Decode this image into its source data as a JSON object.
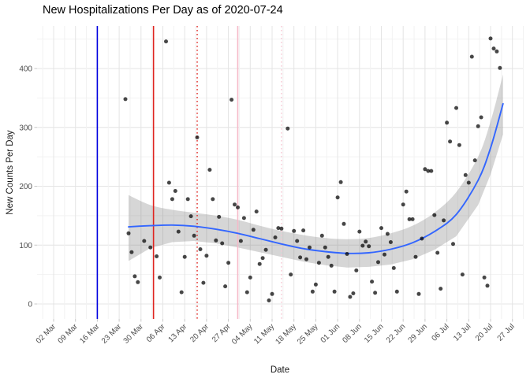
{
  "title": "New Hospitalizations Per Day as of 2020-07-24",
  "chart_data": {
    "type": "scatter",
    "title": "New Hospitalizations Per Day as of 2020-07-24",
    "xlabel": "Date",
    "ylabel": "New Counts Per Day",
    "legend": "none",
    "grid": "major+minor",
    "y_ticks": [
      0,
      100,
      200,
      300,
      400
    ],
    "y_minor_ticks": [
      50,
      150,
      250,
      350,
      450
    ],
    "ylim": [
      -25,
      472
    ],
    "x_ticks": [
      {
        "label": "02 Mar",
        "date": "2020-03-02"
      },
      {
        "label": "09 Mar",
        "date": "2020-03-09"
      },
      {
        "label": "16 Mar",
        "date": "2020-03-16"
      },
      {
        "label": "23 Mar",
        "date": "2020-03-23"
      },
      {
        "label": "30 Mar",
        "date": "2020-03-30"
      },
      {
        "label": "06 Apr",
        "date": "2020-04-06"
      },
      {
        "label": "13 Apr",
        "date": "2020-04-13"
      },
      {
        "label": "20 Apr",
        "date": "2020-04-20"
      },
      {
        "label": "27 Apr",
        "date": "2020-04-27"
      },
      {
        "label": "04 May",
        "date": "2020-05-04"
      },
      {
        "label": "11 May",
        "date": "2020-05-11"
      },
      {
        "label": "18 May",
        "date": "2020-05-18"
      },
      {
        "label": "25 May",
        "date": "2020-05-25"
      },
      {
        "label": "01 Jun",
        "date": "2020-06-01"
      },
      {
        "label": "08 Jun",
        "date": "2020-06-08"
      },
      {
        "label": "15 Jun",
        "date": "2020-06-15"
      },
      {
        "label": "22 Jun",
        "date": "2020-06-22"
      },
      {
        "label": "29 Jun",
        "date": "2020-06-29"
      },
      {
        "label": "06 Jul",
        "date": "2020-07-06"
      },
      {
        "label": "13 Jul",
        "date": "2020-07-13"
      },
      {
        "label": "20 Jul",
        "date": "2020-07-20"
      },
      {
        "label": "27 Jul",
        "date": "2020-07-27"
      }
    ],
    "vlines": [
      {
        "date": "2020-03-16",
        "color": "#0000E0",
        "style": "solid",
        "name": "blue-reference-line"
      },
      {
        "date": "2020-04-03",
        "color": "#DF2420",
        "style": "solid",
        "name": "red-reference-line"
      },
      {
        "date": "2020-04-17",
        "color": "#DF2420",
        "style": "dotted",
        "name": "red-dotted-reference-line"
      },
      {
        "date": "2020-04-30",
        "color": "#F5B8C8",
        "style": "solid",
        "name": "pink-reference-line"
      },
      {
        "date": "2020-05-14",
        "color": "#F6C6D3",
        "style": "dotted",
        "name": "pink-dotted-reference-line"
      }
    ],
    "smooth": {
      "dates": [
        "2020-03-26",
        "2020-04-02",
        "2020-04-09",
        "2020-04-16",
        "2020-04-23",
        "2020-04-30",
        "2020-05-07",
        "2020-05-14",
        "2020-05-21",
        "2020-05-28",
        "2020-06-04",
        "2020-06-11",
        "2020-06-18",
        "2020-06-25",
        "2020-07-02",
        "2020-07-09",
        "2020-07-16",
        "2020-07-20",
        "2020-07-24"
      ],
      "values": [
        131,
        133,
        134,
        132,
        127,
        120,
        111,
        102,
        94,
        89,
        86,
        87,
        93,
        104,
        123,
        152,
        210,
        265,
        340
      ],
      "ci_upper": [
        185,
        168,
        160,
        155,
        150,
        143,
        133,
        124,
        117,
        112,
        110,
        112,
        120,
        133,
        155,
        190,
        250,
        310,
        390
      ],
      "ci_lower": [
        73,
        95,
        105,
        107,
        103,
        96,
        88,
        80,
        72,
        66,
        62,
        63,
        67,
        76,
        92,
        115,
        168,
        220,
        288
      ]
    },
    "points": [
      {
        "d": "2020-03-25",
        "v": 348
      },
      {
        "d": "2020-03-26",
        "v": 120
      },
      {
        "d": "2020-03-27",
        "v": 88
      },
      {
        "d": "2020-03-28",
        "v": 47
      },
      {
        "d": "2020-03-29",
        "v": 37
      },
      {
        "d": "2020-03-31",
        "v": 107
      },
      {
        "d": "2020-04-02",
        "v": 96
      },
      {
        "d": "2020-04-04",
        "v": 81
      },
      {
        "d": "2020-04-05",
        "v": 45
      },
      {
        "d": "2020-04-07",
        "v": 446
      },
      {
        "d": "2020-04-08",
        "v": 206
      },
      {
        "d": "2020-04-09",
        "v": 178
      },
      {
        "d": "2020-04-10",
        "v": 192
      },
      {
        "d": "2020-04-11",
        "v": 123
      },
      {
        "d": "2020-04-12",
        "v": 20
      },
      {
        "d": "2020-04-13",
        "v": 80
      },
      {
        "d": "2020-04-14",
        "v": 178
      },
      {
        "d": "2020-04-15",
        "v": 149
      },
      {
        "d": "2020-04-16",
        "v": 116
      },
      {
        "d": "2020-04-17",
        "v": 283
      },
      {
        "d": "2020-04-18",
        "v": 93
      },
      {
        "d": "2020-04-19",
        "v": 36
      },
      {
        "d": "2020-04-20",
        "v": 82
      },
      {
        "d": "2020-04-21",
        "v": 228
      },
      {
        "d": "2020-04-22",
        "v": 178
      },
      {
        "d": "2020-04-23",
        "v": 108
      },
      {
        "d": "2020-04-24",
        "v": 148
      },
      {
        "d": "2020-04-25",
        "v": 103
      },
      {
        "d": "2020-04-26",
        "v": 30
      },
      {
        "d": "2020-04-27",
        "v": 70
      },
      {
        "d": "2020-04-28",
        "v": 347
      },
      {
        "d": "2020-04-29",
        "v": 169
      },
      {
        "d": "2020-04-30",
        "v": 164
      },
      {
        "d": "2020-05-01",
        "v": 107
      },
      {
        "d": "2020-05-02",
        "v": 146
      },
      {
        "d": "2020-05-03",
        "v": 20
      },
      {
        "d": "2020-05-04",
        "v": 45
      },
      {
        "d": "2020-05-05",
        "v": 126
      },
      {
        "d": "2020-05-06",
        "v": 157
      },
      {
        "d": "2020-05-07",
        "v": 68
      },
      {
        "d": "2020-05-08",
        "v": 78
      },
      {
        "d": "2020-05-09",
        "v": 92
      },
      {
        "d": "2020-05-10",
        "v": 6
      },
      {
        "d": "2020-05-11",
        "v": 17
      },
      {
        "d": "2020-05-12",
        "v": 113
      },
      {
        "d": "2020-05-13",
        "v": 129
      },
      {
        "d": "2020-05-14",
        "v": 128
      },
      {
        "d": "2020-05-16",
        "v": 298
      },
      {
        "d": "2020-05-17",
        "v": 50
      },
      {
        "d": "2020-05-18",
        "v": 124
      },
      {
        "d": "2020-05-19",
        "v": 107
      },
      {
        "d": "2020-05-20",
        "v": 79
      },
      {
        "d": "2020-05-21",
        "v": 125
      },
      {
        "d": "2020-05-22",
        "v": 76
      },
      {
        "d": "2020-05-23",
        "v": 96
      },
      {
        "d": "2020-05-24",
        "v": 21
      },
      {
        "d": "2020-05-25",
        "v": 33
      },
      {
        "d": "2020-05-26",
        "v": 70
      },
      {
        "d": "2020-05-27",
        "v": 116
      },
      {
        "d": "2020-05-28",
        "v": 96
      },
      {
        "d": "2020-05-29",
        "v": 80
      },
      {
        "d": "2020-05-30",
        "v": 65
      },
      {
        "d": "2020-05-31",
        "v": 21
      },
      {
        "d": "2020-06-01",
        "v": 181
      },
      {
        "d": "2020-06-02",
        "v": 207
      },
      {
        "d": "2020-06-03",
        "v": 136
      },
      {
        "d": "2020-06-04",
        "v": 85
      },
      {
        "d": "2020-06-05",
        "v": 12
      },
      {
        "d": "2020-06-06",
        "v": 18
      },
      {
        "d": "2020-06-07",
        "v": 57
      },
      {
        "d": "2020-06-08",
        "v": 123
      },
      {
        "d": "2020-06-09",
        "v": 99
      },
      {
        "d": "2020-06-10",
        "v": 106
      },
      {
        "d": "2020-06-11",
        "v": 98
      },
      {
        "d": "2020-06-12",
        "v": 38
      },
      {
        "d": "2020-06-13",
        "v": 19
      },
      {
        "d": "2020-06-14",
        "v": 71
      },
      {
        "d": "2020-06-15",
        "v": 129
      },
      {
        "d": "2020-06-16",
        "v": 84
      },
      {
        "d": "2020-06-17",
        "v": 119
      },
      {
        "d": "2020-06-18",
        "v": 105
      },
      {
        "d": "2020-06-19",
        "v": 61
      },
      {
        "d": "2020-06-20",
        "v": 21
      },
      {
        "d": "2020-06-22",
        "v": 169
      },
      {
        "d": "2020-06-23",
        "v": 191
      },
      {
        "d": "2020-06-24",
        "v": 144
      },
      {
        "d": "2020-06-25",
        "v": 144
      },
      {
        "d": "2020-06-26",
        "v": 80
      },
      {
        "d": "2020-06-27",
        "v": 17
      },
      {
        "d": "2020-06-28",
        "v": 111
      },
      {
        "d": "2020-06-29",
        "v": 229
      },
      {
        "d": "2020-06-30",
        "v": 226
      },
      {
        "d": "2020-07-01",
        "v": 226
      },
      {
        "d": "2020-07-02",
        "v": 151
      },
      {
        "d": "2020-07-03",
        "v": 87
      },
      {
        "d": "2020-07-04",
        "v": 26
      },
      {
        "d": "2020-07-05",
        "v": 142
      },
      {
        "d": "2020-07-06",
        "v": 308
      },
      {
        "d": "2020-07-07",
        "v": 276
      },
      {
        "d": "2020-07-08",
        "v": 102
      },
      {
        "d": "2020-07-09",
        "v": 333
      },
      {
        "d": "2020-07-10",
        "v": 270
      },
      {
        "d": "2020-07-11",
        "v": 50
      },
      {
        "d": "2020-07-12",
        "v": 219
      },
      {
        "d": "2020-07-13",
        "v": 206
      },
      {
        "d": "2020-07-14",
        "v": 420
      },
      {
        "d": "2020-07-15",
        "v": 244
      },
      {
        "d": "2020-07-16",
        "v": 302
      },
      {
        "d": "2020-07-17",
        "v": 317
      },
      {
        "d": "2020-07-18",
        "v": 45
      },
      {
        "d": "2020-07-19",
        "v": 31
      },
      {
        "d": "2020-07-20",
        "v": 451
      },
      {
        "d": "2020-07-21",
        "v": 434
      },
      {
        "d": "2020-07-22",
        "v": 429
      },
      {
        "d": "2020-07-23",
        "v": 401
      }
    ],
    "style": {
      "point_color": "rgba(0,0,0,0.72)",
      "smooth_color": "#3366FF",
      "band_color": "rgba(127,127,127,0.32)",
      "grid_major_color": "#E4E4E4",
      "grid_minor_color": "#F2F2F2",
      "tick_color": "#C9C9C9",
      "axis_text_color": "#4D4D4D"
    }
  }
}
